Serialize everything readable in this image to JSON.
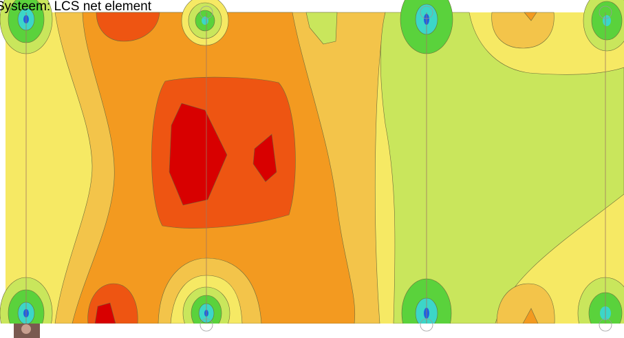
{
  "header": {
    "title": "Systeem: LCS net element"
  }
}
